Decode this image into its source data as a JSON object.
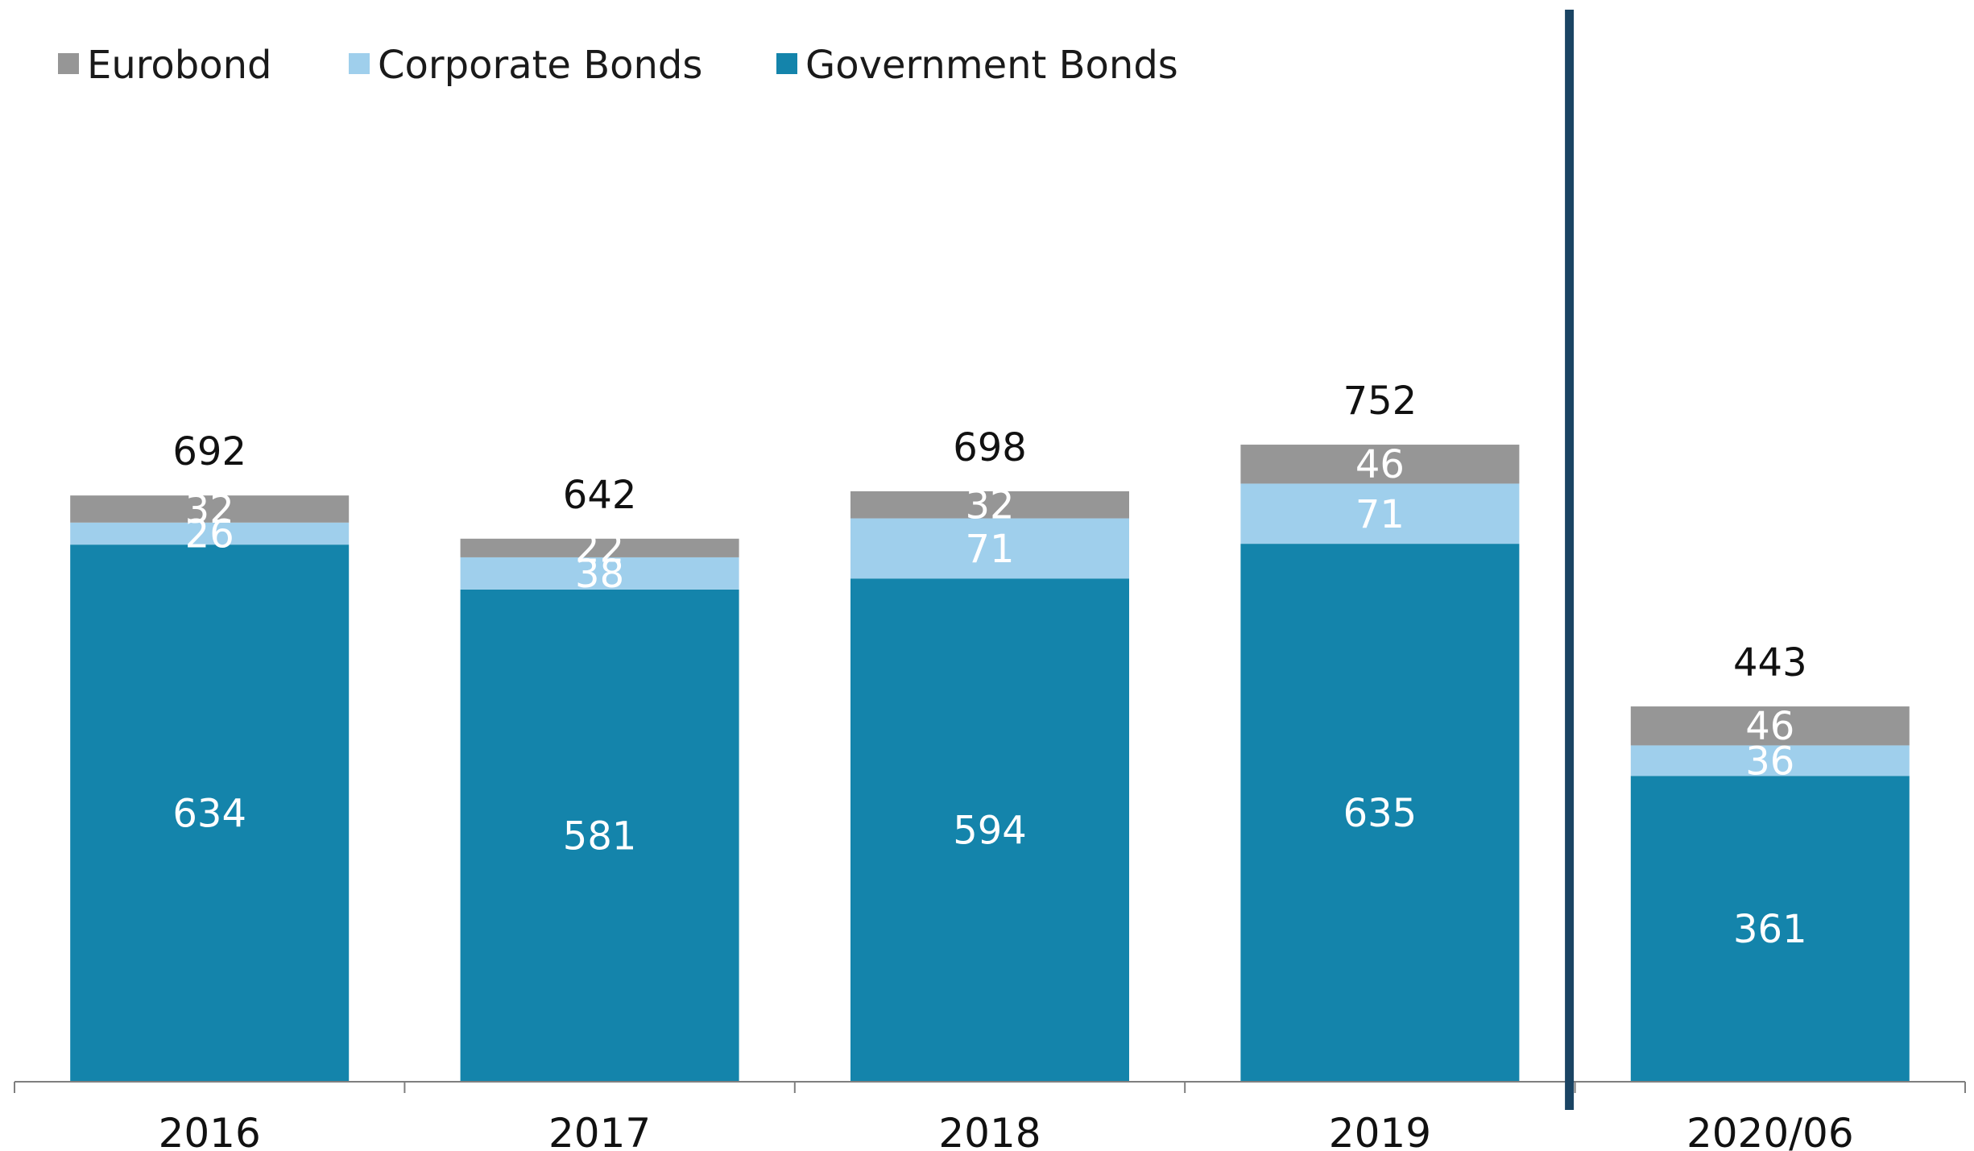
{
  "colors": {
    "eurobond": "#969696",
    "corporate": "#9fcfec",
    "government": "#1484ab",
    "divider": "#1a4463",
    "axis": "#7f7f7f"
  },
  "chart_data": {
    "type": "bar",
    "stacked": true,
    "categories": [
      "2016",
      "2017",
      "2018",
      "2019",
      "2020/06"
    ],
    "series": [
      {
        "name": "Government Bonds",
        "color_key": "government",
        "values": [
          634,
          581,
          594,
          635,
          361
        ]
      },
      {
        "name": "Corporate Bonds",
        "color_key": "corporate",
        "values": [
          26,
          38,
          71,
          71,
          36
        ]
      },
      {
        "name": "Eurobond",
        "color_key": "eurobond",
        "values": [
          32,
          22,
          32,
          46,
          46
        ]
      }
    ],
    "totals": [
      692,
      642,
      698,
      752,
      443
    ],
    "legend": [
      "Eurobond",
      "Corporate Bonds",
      "Government Bonds"
    ],
    "legend_position": "top-left",
    "divider_after_category": "2019",
    "ylim": [
      0,
      800
    ],
    "grid": false,
    "title": "",
    "xlabel": "",
    "ylabel": ""
  }
}
